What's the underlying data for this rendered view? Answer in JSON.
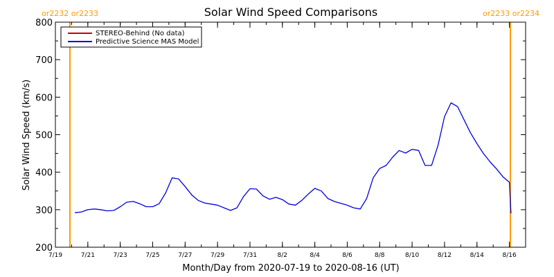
{
  "chart_data": {
    "type": "line",
    "title": "Solar Wind Speed Comparisons",
    "xlabel": "Month/Day from 2020-07-19 to 2020-08-16 (UT)",
    "ylabel": "Solar Wind Speed (km/s)",
    "ylim": [
      200,
      800
    ],
    "xlim_days": [
      0,
      29
    ],
    "yticks": [
      200,
      300,
      400,
      500,
      600,
      700,
      800
    ],
    "xticks": [
      {
        "day": 0,
        "label": "7/19"
      },
      {
        "day": 2,
        "label": "7/21"
      },
      {
        "day": 4,
        "label": "7/23"
      },
      {
        "day": 6,
        "label": "7/25"
      },
      {
        "day": 8,
        "label": "7/27"
      },
      {
        "day": 10,
        "label": "7/29"
      },
      {
        "day": 12,
        "label": "7/31"
      },
      {
        "day": 14,
        "label": "8/2"
      },
      {
        "day": 16,
        "label": "8/4"
      },
      {
        "day": 18,
        "label": "8/6"
      },
      {
        "day": 20,
        "label": "8/8"
      },
      {
        "day": 22,
        "label": "8/10"
      },
      {
        "day": 24,
        "label": "8/12"
      },
      {
        "day": 26,
        "label": "8/14"
      },
      {
        "day": 28,
        "label": "8/16"
      }
    ],
    "legend_position": "top-left",
    "series": [
      {
        "name": "STEREO-Behind (No data)",
        "color": "#cc0000",
        "x": [],
        "y": []
      },
      {
        "name": "Predictive Science MAS Model",
        "color": "#0000dd",
        "x": [
          1.2,
          1.6,
          2.0,
          2.4,
          2.8,
          3.2,
          3.6,
          4.0,
          4.4,
          4.8,
          5.2,
          5.6,
          6.0,
          6.4,
          6.8,
          7.2,
          7.6,
          8.0,
          8.4,
          8.8,
          9.2,
          9.6,
          10.0,
          10.4,
          10.8,
          11.2,
          11.6,
          12.0,
          12.4,
          12.8,
          13.2,
          13.6,
          14.0,
          14.4,
          14.8,
          15.2,
          15.6,
          16.0,
          16.4,
          16.8,
          17.2,
          17.6,
          18.0,
          18.4,
          18.8,
          19.2,
          19.6,
          20.0,
          20.4,
          20.8,
          21.2,
          21.6,
          22.0,
          22.4,
          22.8,
          23.2,
          23.6,
          24.0,
          24.4,
          24.8,
          25.2,
          25.6,
          26.0,
          26.4,
          26.8,
          27.2,
          27.6,
          28.0,
          28.1
        ],
        "y": [
          292,
          294,
          300,
          302,
          300,
          297,
          298,
          308,
          320,
          322,
          316,
          308,
          308,
          316,
          345,
          385,
          382,
          362,
          340,
          325,
          318,
          315,
          312,
          305,
          298,
          305,
          335,
          356,
          355,
          337,
          328,
          333,
          327,
          315,
          312,
          325,
          342,
          357,
          350,
          330,
          322,
          317,
          312,
          305,
          302,
          330,
          385,
          410,
          418,
          440,
          458,
          451,
          461,
          458,
          418,
          418,
          472,
          548,
          585,
          575,
          540,
          505,
          476,
          450,
          428,
          409,
          388,
          373,
          290
        ]
      }
    ]
  },
  "annotations": {
    "left_rotation_label": "or2232 or2233",
    "right_rotation_label": "or2233 or2234",
    "rotation_color": "#ff9900"
  }
}
